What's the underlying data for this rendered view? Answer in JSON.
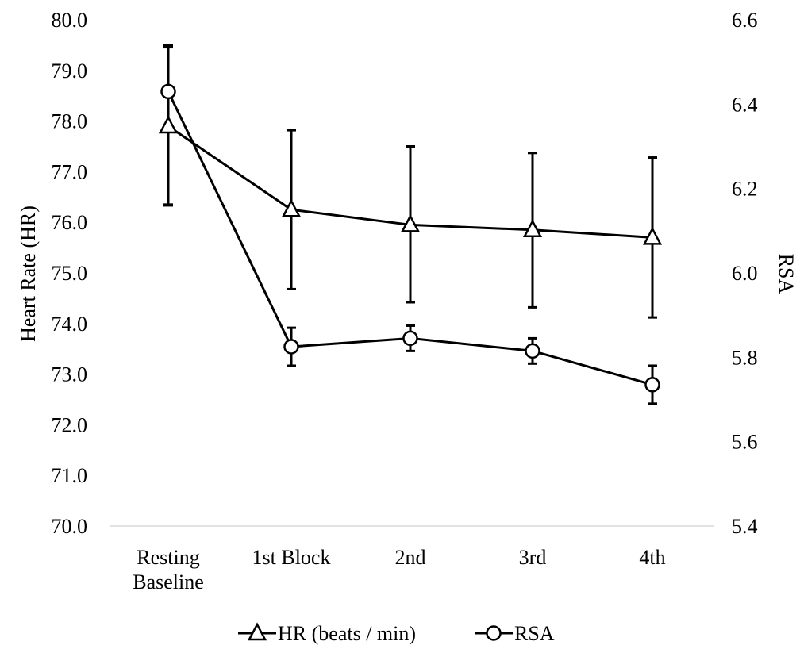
{
  "chart_data": {
    "type": "line",
    "categories": [
      [
        "Resting",
        "Baseline"
      ],
      [
        "1st Block"
      ],
      [
        "2nd"
      ],
      [
        "3rd"
      ],
      [
        "4th"
      ]
    ],
    "y_left": {
      "label": "Heart Rate (HR)",
      "range": [
        70.0,
        80.0
      ],
      "ticks": [
        "70.0",
        "71.0",
        "72.0",
        "73.0",
        "74.0",
        "75.0",
        "76.0",
        "77.0",
        "78.0",
        "79.0",
        "80.0"
      ]
    },
    "y_right": {
      "label": "RSA",
      "range": [
        5.4,
        6.6
      ],
      "ticks": [
        "5.4",
        "5.6",
        "5.8",
        "6.0",
        "6.2",
        "6.4",
        "6.6"
      ]
    },
    "grid": false,
    "legend_position": "bottom",
    "series": [
      {
        "name": "HR (beats / min)",
        "axis": "left",
        "marker": "triangle",
        "values": [
          77.9,
          76.25,
          75.95,
          75.85,
          75.7
        ],
        "error_low": [
          76.35,
          74.68,
          74.42,
          74.32,
          74.12
        ],
        "error_high": [
          79.5,
          77.82,
          77.5,
          77.37,
          77.28
        ]
      },
      {
        "name": "RSA",
        "axis": "right",
        "marker": "circle",
        "values": [
          6.43,
          5.825,
          5.845,
          5.815,
          5.735
        ],
        "error_low": [
          6.16,
          5.78,
          5.815,
          5.785,
          5.69
        ],
        "error_high": [
          6.535,
          5.87,
          5.875,
          5.845,
          5.78
        ]
      }
    ]
  }
}
